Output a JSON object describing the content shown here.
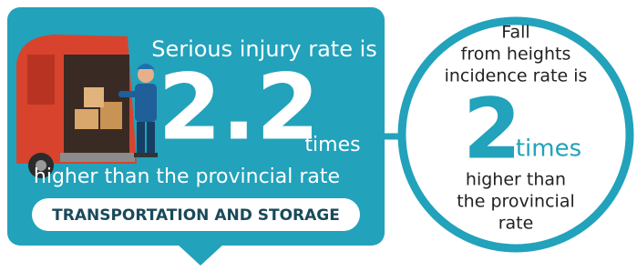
{
  "left_panel": {
    "heading": "Serious injury rate is",
    "figure": 2.2,
    "unit": "times",
    "comparison": "higher than the provincial rate",
    "sector": "TRANSPORTATION AND STORAGE"
  },
  "right_panel": {
    "heading_lines": [
      "Fall",
      "from heights",
      "incidence rate is"
    ],
    "figure": 2,
    "unit": "times",
    "comparison_lines": [
      "higher than",
      "the provincial",
      "rate"
    ]
  }
}
